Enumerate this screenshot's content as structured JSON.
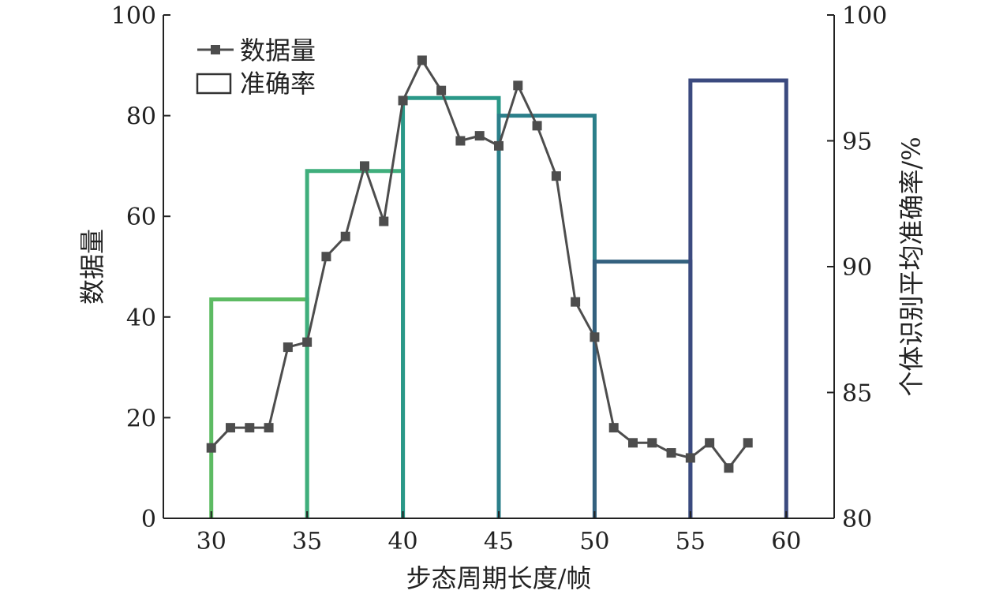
{
  "chart_data": {
    "type": "bar+line",
    "xlabel": "步态周期长度/帧",
    "ylabel_left": "数据量",
    "ylabel_right": "个体识别平均准确率/%",
    "xlim": [
      27.5,
      62.5
    ],
    "ylim_left": [
      0,
      100
    ],
    "ylim_right": [
      80,
      100
    ],
    "x_ticks": [
      30,
      35,
      40,
      45,
      50,
      55,
      60
    ],
    "y_left_ticks": [
      0,
      20,
      40,
      60,
      80,
      100
    ],
    "y_right_ticks": [
      80,
      85,
      90,
      95,
      100
    ],
    "grid": false,
    "legend": {
      "position": "top-left",
      "entries": [
        {
          "label": "数据量",
          "kind": "line-square-marker"
        },
        {
          "label": "准确率",
          "kind": "hollow-bar"
        }
      ]
    },
    "bars": {
      "name": "准确率",
      "axis": "right",
      "style": "hollow-outline",
      "intervals": [
        {
          "from": 30,
          "to": 35,
          "value": 88.7,
          "color": "#5dbb63"
        },
        {
          "from": 35,
          "to": 40,
          "value": 93.8,
          "color": "#3fae7c"
        },
        {
          "from": 40,
          "to": 45,
          "value": 96.7,
          "color": "#2a9888"
        },
        {
          "from": 45,
          "to": 50,
          "value": 96.0,
          "color": "#2b7f8a"
        },
        {
          "from": 50,
          "to": 55,
          "value": 90.2,
          "color": "#34617f"
        },
        {
          "from": 55,
          "to": 60,
          "value": 97.4,
          "color": "#3b4a7f"
        }
      ]
    },
    "series": [
      {
        "name": "数据量",
        "axis": "left",
        "color": "#4d4d4d",
        "marker": "square",
        "x": [
          30,
          31,
          32,
          33,
          34,
          35,
          36,
          37,
          38,
          39,
          40,
          41,
          42,
          43,
          44,
          45,
          46,
          47,
          48,
          49,
          50,
          51,
          52,
          53,
          54,
          55,
          56,
          57,
          58
        ],
        "y": [
          14,
          18,
          18,
          18,
          34,
          35,
          52,
          56,
          70,
          59,
          83,
          91,
          85,
          75,
          76,
          74,
          86,
          78,
          68,
          43,
          36,
          18,
          15,
          15,
          13,
          12,
          15,
          10,
          15
        ]
      }
    ]
  }
}
